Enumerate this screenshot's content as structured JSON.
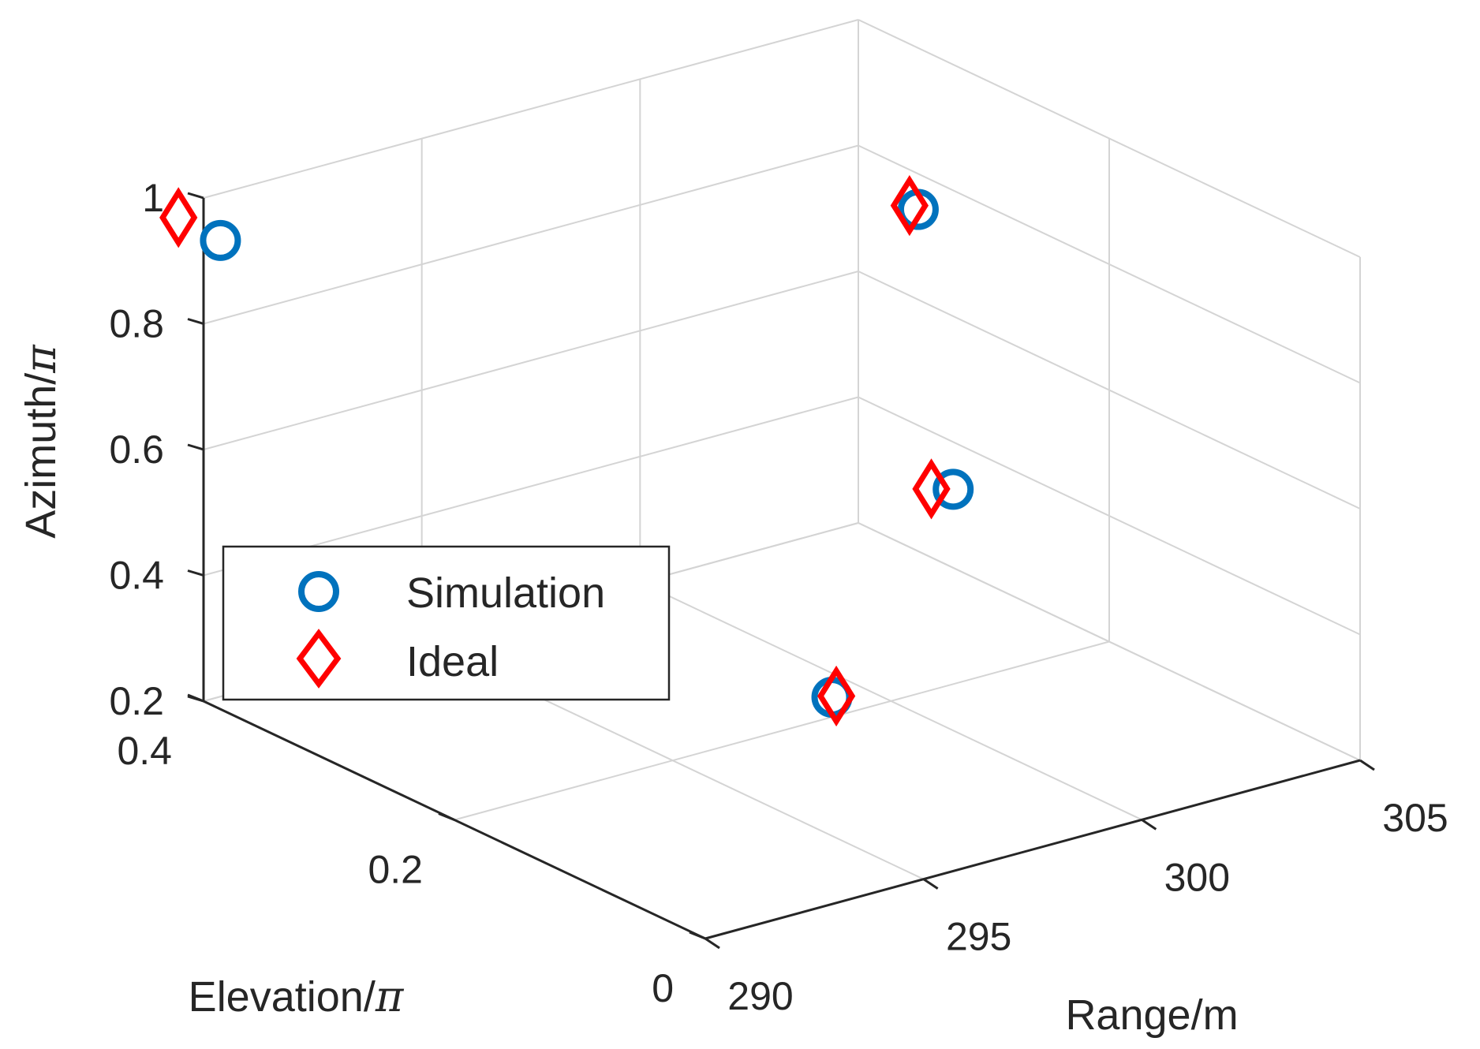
{
  "chart_data": {
    "type": "scatter3d",
    "title": "",
    "xlabel": "Range/m",
    "ylabel": "Elevation/",
    "ylabel_symbol": "π",
    "zlabel": "Azimuth/",
    "zlabel_symbol": "π",
    "xlim": [
      290,
      305
    ],
    "ylim": [
      0,
      0.4
    ],
    "zlim": [
      0.2,
      1
    ],
    "xticks": [
      "290",
      "295",
      "300",
      "305"
    ],
    "yticks": [
      "0",
      "0.2",
      "0.4"
    ],
    "zticks": [
      "0.2",
      "0.4",
      "0.6",
      "0.8",
      "1"
    ],
    "grid": true,
    "legend_position": "left",
    "series": [
      {
        "name": "Simulation",
        "marker": "circle",
        "color": "#0072BD",
        "points": [
          {
            "x": 290.1,
            "y": 0.39,
            "z": 0.94
          },
          {
            "x": 301.2,
            "y": 0.22,
            "z": 0.94
          },
          {
            "x": 302.0,
            "y": 0.22,
            "z": 0.48
          },
          {
            "x": 295.2,
            "y": 0.08,
            "z": 0.41
          }
        ]
      },
      {
        "name": "Ideal",
        "marker": "diamond",
        "color": "#FF0000",
        "points": [
          {
            "x": 290.0,
            "y": 0.42,
            "z": 0.95
          },
          {
            "x": 301.0,
            "y": 0.22,
            "z": 0.95
          },
          {
            "x": 301.5,
            "y": 0.22,
            "z": 0.49
          },
          {
            "x": 295.3,
            "y": 0.08,
            "z": 0.41
          }
        ]
      }
    ]
  }
}
